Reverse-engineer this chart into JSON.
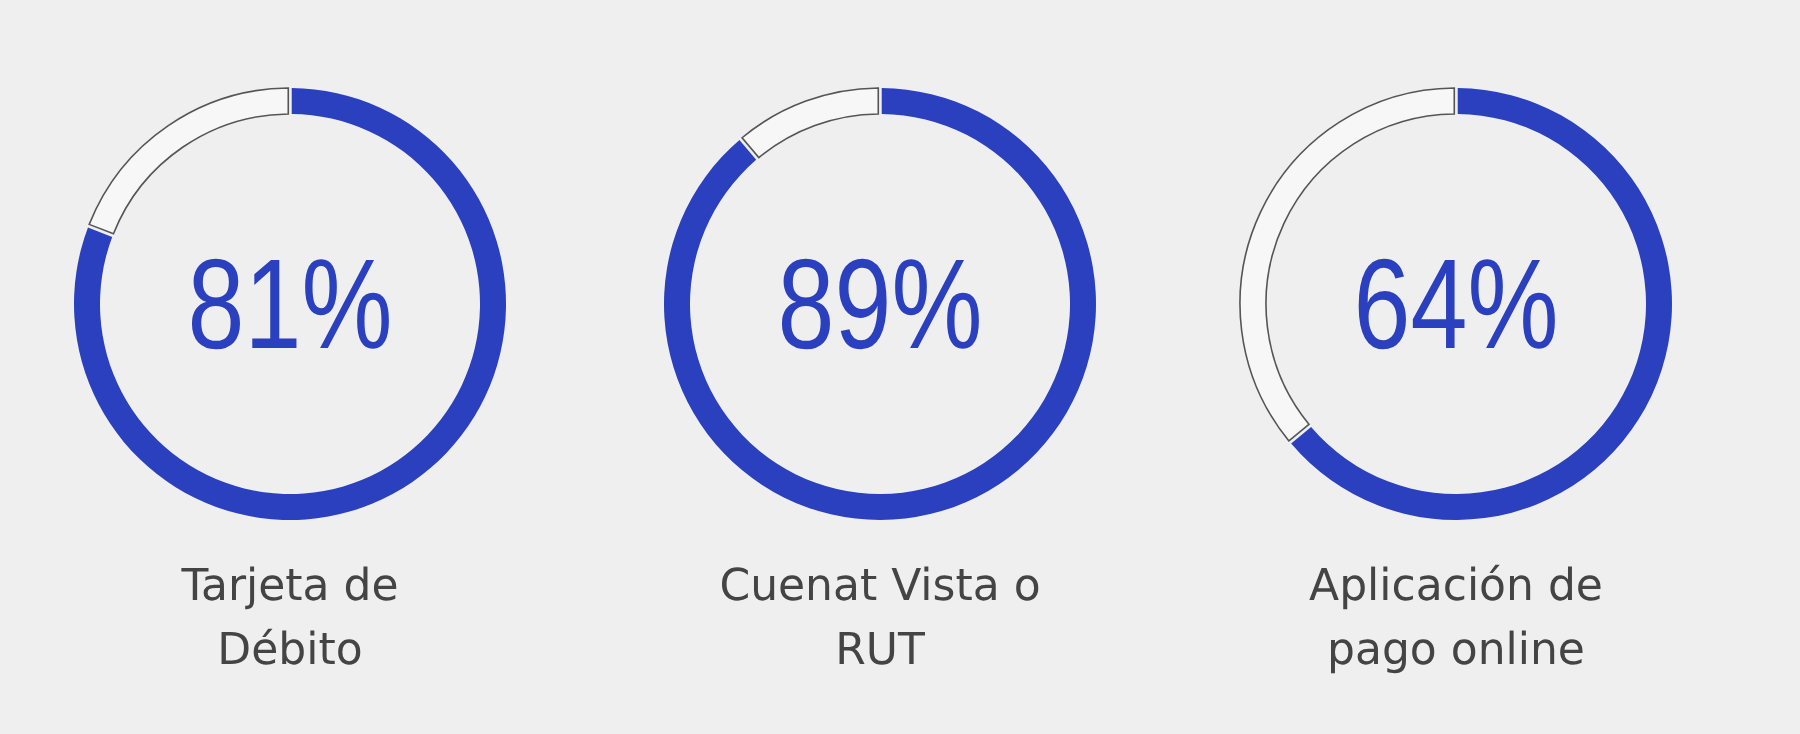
{
  "chart_data": [
    {
      "type": "donut",
      "title": "Tarjeta de Débito",
      "categories": [
        null,
        null
      ],
      "values": [
        81,
        19
      ],
      "colors": [
        "#2a40bf",
        "#f7f7f7"
      ],
      "value_labels": [
        "81%",
        null
      ]
    },
    {
      "type": "donut",
      "title": "Cuenat Vista o RUT",
      "categories": [
        null,
        null
      ],
      "values": [
        89,
        11
      ],
      "colors": [
        "#2a40bf",
        "#f7f7f7"
      ],
      "value_labels": [
        "89%",
        null
      ]
    },
    {
      "type": "donut",
      "title": "Aplicación de pago online",
      "categories": [
        null,
        null
      ],
      "values": [
        64,
        36
      ],
      "colors": [
        "#2a40bf",
        "#f7f7f7"
      ],
      "value_labels": [
        "64%",
        null
      ]
    }
  ]
}
